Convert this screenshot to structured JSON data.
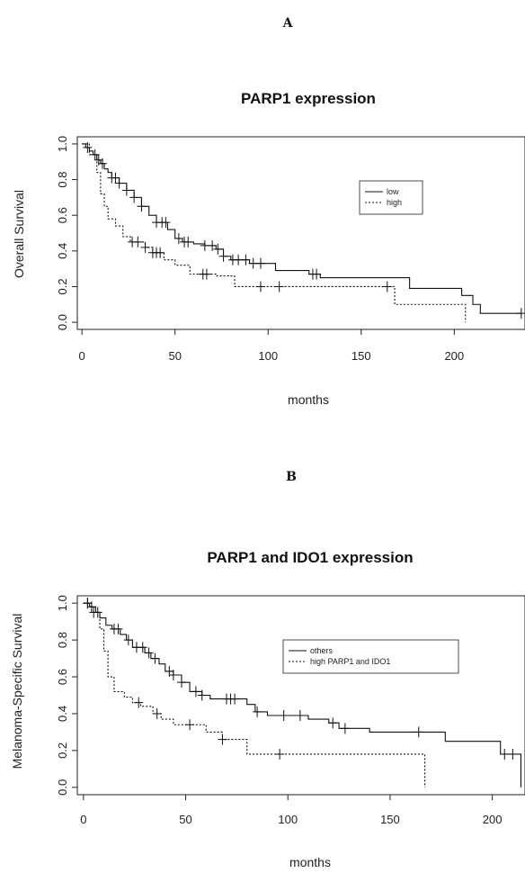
{
  "chart_data": [
    {
      "type": "line",
      "panel_label": "A",
      "title": "PARP1 expression",
      "xlabel": "months",
      "ylabel": "Overall Survival",
      "xlim": [
        0,
        240
      ],
      "ylim": [
        0,
        1.0
      ],
      "x_ticks": [
        "0",
        "50",
        "100",
        "150",
        "200"
      ],
      "y_ticks": [
        "0.0",
        "0.2",
        "0.4",
        "0.6",
        "0.8",
        "1.0"
      ],
      "legend_position": "top-right",
      "series": [
        {
          "name": "low",
          "line_style": "solid",
          "steps": [
            [
              0,
              1.0
            ],
            [
              2,
              0.98
            ],
            [
              4,
              0.96
            ],
            [
              6,
              0.94
            ],
            [
              8,
              0.91
            ],
            [
              10,
              0.89
            ],
            [
              12,
              0.86
            ],
            [
              14,
              0.84
            ],
            [
              16,
              0.81
            ],
            [
              20,
              0.78
            ],
            [
              24,
              0.74
            ],
            [
              28,
              0.7
            ],
            [
              32,
              0.65
            ],
            [
              36,
              0.6
            ],
            [
              40,
              0.56
            ],
            [
              46,
              0.52
            ],
            [
              50,
              0.47
            ],
            [
              54,
              0.45
            ],
            [
              60,
              0.44
            ],
            [
              66,
              0.43
            ],
            [
              72,
              0.41
            ],
            [
              76,
              0.37
            ],
            [
              80,
              0.35
            ],
            [
              90,
              0.33
            ],
            [
              104,
              0.29
            ],
            [
              122,
              0.27
            ],
            [
              128,
              0.25
            ],
            [
              176,
              0.19
            ],
            [
              204,
              0.15
            ],
            [
              210,
              0.1
            ],
            [
              214,
              0.05
            ],
            [
              236,
              0.05
            ]
          ],
          "censor_x": [
            3,
            7,
            9,
            11,
            16,
            18,
            20,
            24,
            28,
            32,
            40,
            43,
            45,
            52,
            55,
            57,
            66,
            70,
            73,
            76,
            81,
            84,
            88,
            92,
            96,
            124,
            126,
            236
          ]
        },
        {
          "name": "high",
          "line_style": "dotted",
          "steps": [
            [
              0,
              1.0
            ],
            [
              4,
              0.94
            ],
            [
              8,
              0.84
            ],
            [
              10,
              0.72
            ],
            [
              12,
              0.65
            ],
            [
              14,
              0.58
            ],
            [
              18,
              0.54
            ],
            [
              22,
              0.48
            ],
            [
              26,
              0.45
            ],
            [
              34,
              0.42
            ],
            [
              38,
              0.39
            ],
            [
              44,
              0.35
            ],
            [
              50,
              0.32
            ],
            [
              58,
              0.27
            ],
            [
              72,
              0.26
            ],
            [
              82,
              0.2
            ],
            [
              164,
              0.2
            ],
            [
              168,
              0.1
            ],
            [
              206,
              0.0
            ]
          ],
          "censor_x": [
            27,
            30,
            34,
            38,
            40,
            42,
            65,
            67,
            96,
            106,
            164
          ]
        }
      ]
    },
    {
      "type": "line",
      "panel_label": "B",
      "title": "PARP1 and IDO1 expression",
      "xlabel": "months",
      "ylabel": "Melanoma-Specific Survival",
      "xlim": [
        0,
        215
      ],
      "ylim": [
        0,
        1.0
      ],
      "x_ticks": [
        "0",
        "50",
        "100",
        "150",
        "200"
      ],
      "y_ticks": [
        "0.0",
        "0.2",
        "0.4",
        "0.6",
        "0.8",
        "1.0"
      ],
      "legend_position": "top-right",
      "series": [
        {
          "name": "others",
          "line_style": "solid",
          "steps": [
            [
              0,
              1.0
            ],
            [
              3,
              0.98
            ],
            [
              6,
              0.95
            ],
            [
              8,
              0.92
            ],
            [
              11,
              0.88
            ],
            [
              14,
              0.86
            ],
            [
              18,
              0.83
            ],
            [
              21,
              0.8
            ],
            [
              24,
              0.76
            ],
            [
              30,
              0.73
            ],
            [
              33,
              0.7
            ],
            [
              37,
              0.67
            ],
            [
              40,
              0.63
            ],
            [
              44,
              0.61
            ],
            [
              48,
              0.57
            ],
            [
              52,
              0.52
            ],
            [
              58,
              0.5
            ],
            [
              62,
              0.48
            ],
            [
              80,
              0.45
            ],
            [
              84,
              0.41
            ],
            [
              90,
              0.39
            ],
            [
              110,
              0.37
            ],
            [
              120,
              0.35
            ],
            [
              125,
              0.32
            ],
            [
              140,
              0.3
            ],
            [
              150,
              0.3
            ],
            [
              177,
              0.25
            ],
            [
              204,
              0.18
            ],
            [
              214,
              0.18
            ],
            [
              214,
              0.0
            ]
          ],
          "censor_x": [
            2,
            4,
            7,
            15,
            17,
            22,
            26,
            29,
            32,
            35,
            42,
            44,
            48,
            55,
            58,
            70,
            72,
            74,
            85,
            98,
            106,
            122,
            128,
            164,
            206,
            210
          ]
        },
        {
          "name": "high PARP1 and IDO1",
          "line_style": "dotted",
          "steps": [
            [
              0,
              1.0
            ],
            [
              4,
              0.95
            ],
            [
              8,
              0.86
            ],
            [
              10,
              0.74
            ],
            [
              12,
              0.6
            ],
            [
              15,
              0.52
            ],
            [
              20,
              0.49
            ],
            [
              24,
              0.46
            ],
            [
              28,
              0.44
            ],
            [
              34,
              0.4
            ],
            [
              38,
              0.37
            ],
            [
              44,
              0.34
            ],
            [
              60,
              0.3
            ],
            [
              68,
              0.26
            ],
            [
              80,
              0.18
            ],
            [
              167,
              0.18
            ],
            [
              167,
              0.0
            ]
          ],
          "censor_x": [
            2,
            5,
            27,
            36,
            52,
            68,
            96
          ]
        }
      ]
    }
  ]
}
